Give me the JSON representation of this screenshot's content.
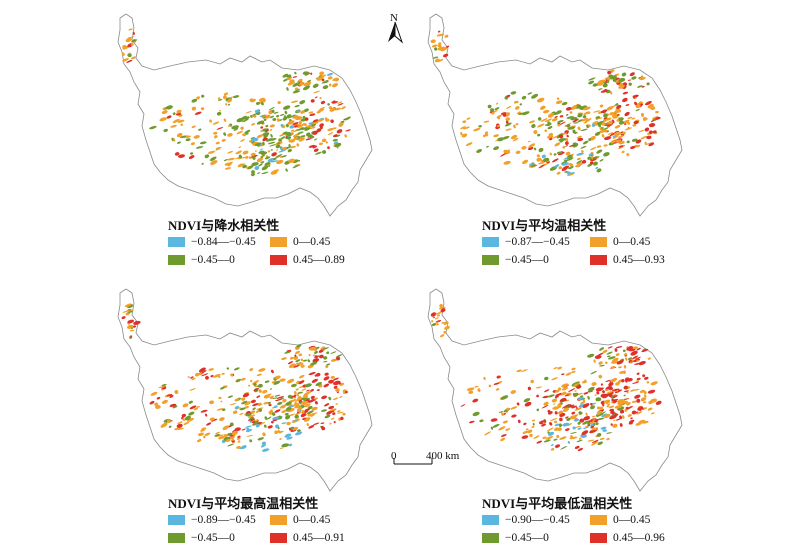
{
  "panels": [
    {
      "title": "NDVI与降水相关性",
      "legend": [
        "−0.84—−0.45",
        "0—0.45",
        "−0.45—0",
        "0.45—0.89"
      ],
      "dominant": "mixed"
    },
    {
      "title": "NDVI与平均温相关性",
      "legend": [
        "−0.87—−0.45",
        "0—0.45",
        "−0.45—0",
        "0.45—0.93"
      ],
      "dominant": "warm"
    },
    {
      "title": "NDVI与平均最高温相关性",
      "legend": [
        "−0.89—−0.45",
        "0—0.45",
        "−0.45—0",
        "0.45—0.91"
      ],
      "dominant": "warm"
    },
    {
      "title": "NDVI与平均最低温相关性",
      "legend": [
        "−0.90—−0.45",
        "0—0.45",
        "−0.45—0",
        "0.45—0.96"
      ],
      "dominant": "hot"
    }
  ],
  "colors": {
    "strong_negative": "#5bb7e0",
    "weak_negative": "#6f9a2e",
    "weak_positive": "#f2a02a",
    "strong_positive": "#e0302a",
    "outline": "#8a8a8a"
  },
  "north_arrow": {
    "label": "N"
  },
  "scale_bar": {
    "start": "0",
    "end": "400 km"
  }
}
